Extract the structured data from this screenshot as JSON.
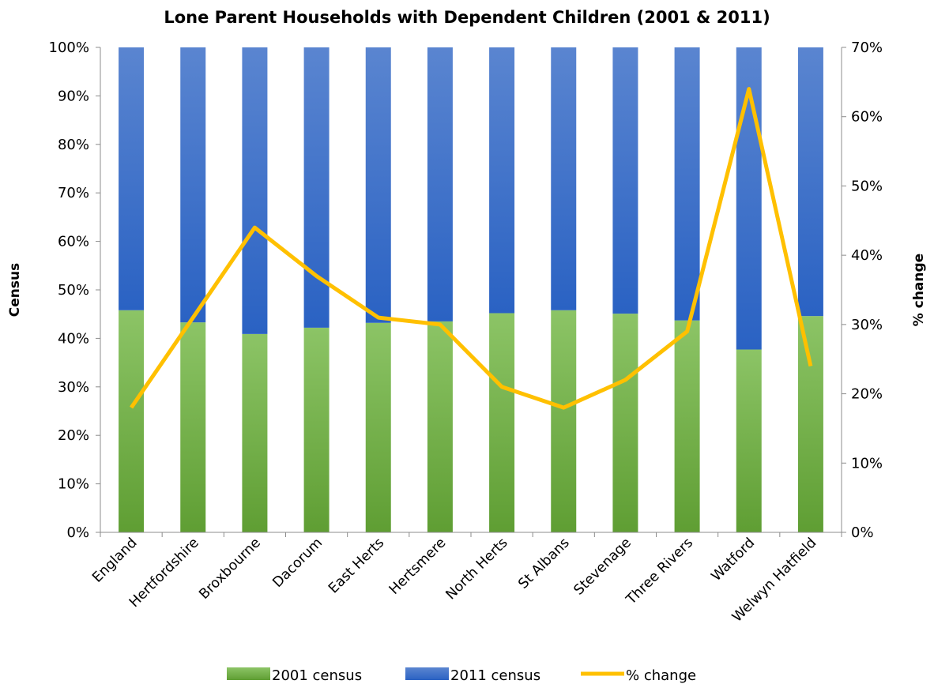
{
  "chart_data": {
    "type": "bar",
    "stacked": "percent",
    "title": "Lone Parent Households with Dependent Children (2001 & 2011)",
    "ylabel": "Census",
    "y2label": "% change",
    "ylim": [
      0,
      100
    ],
    "y2lim": [
      0,
      70
    ],
    "yticks": [
      "0%",
      "10%",
      "20%",
      "30%",
      "40%",
      "50%",
      "60%",
      "70%",
      "80%",
      "90%",
      "100%"
    ],
    "y2ticks": [
      "0%",
      "10%",
      "20%",
      "30%",
      "40%",
      "50%",
      "60%",
      "70%"
    ],
    "grid": false,
    "legend_position": "bottom",
    "categories": [
      "England",
      "Hertfordshire",
      "Broxbourne",
      "Dacorum",
      "East Herts",
      "Hertsmere",
      "North Herts",
      "St Albans",
      "Stevenage",
      "Three Rivers",
      "Watford",
      "Welwyn Hatfield"
    ],
    "series": [
      {
        "name": "2001 census",
        "kind": "bar",
        "axis": "left",
        "color": "#6aab3c",
        "values": [
          45.8,
          43.3,
          40.9,
          42.2,
          43.2,
          43.5,
          45.2,
          45.8,
          45.1,
          43.7,
          37.7,
          44.6
        ]
      },
      {
        "name": "2011 census",
        "kind": "bar",
        "axis": "left",
        "color": "#3a6fc8",
        "values": [
          54.2,
          56.7,
          59.1,
          57.8,
          56.8,
          56.5,
          54.8,
          54.2,
          54.9,
          56.3,
          62.3,
          55.4
        ]
      },
      {
        "name": "% change",
        "kind": "line",
        "axis": "right",
        "color": "#ffc000",
        "values": [
          18,
          31,
          44,
          37,
          31,
          30,
          21,
          18,
          22,
          29,
          64,
          24
        ]
      }
    ]
  }
}
